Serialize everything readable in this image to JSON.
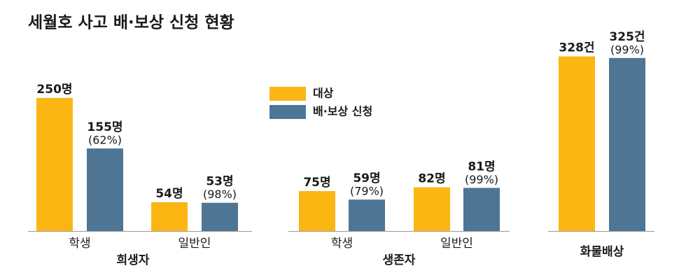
{
  "title": "세월호 사고 배·보상 신청 현황",
  "chart_data": [
    {
      "type": "bar",
      "categories": [
        "학생",
        "일반인"
      ],
      "xlabel": "희생자",
      "ylim": [
        0,
        330
      ],
      "series": [
        {
          "name": "대상",
          "color": "#fbb614",
          "values": [
            250,
            54
          ],
          "value_labels": [
            "250명",
            "54명"
          ]
        },
        {
          "name": "배·보상 신청",
          "color": "#4f7594",
          "values": [
            155,
            53
          ],
          "value_labels": [
            "155명",
            "53명"
          ],
          "notes": [
            "(62%)",
            "(98%)"
          ]
        }
      ]
    },
    {
      "type": "bar",
      "categories": [
        "학생",
        "일반인"
      ],
      "xlabel": "생존자",
      "ylim": [
        0,
        330
      ],
      "series": [
        {
          "color": "#fbb614",
          "values": [
            75,
            82
          ],
          "value_labels": [
            "75명",
            "82명"
          ]
        },
        {
          "color": "#4f7594",
          "values": [
            59,
            81
          ],
          "value_labels": [
            "59명",
            "81명"
          ],
          "notes": [
            "(79%)",
            "(99%)"
          ]
        }
      ]
    },
    {
      "type": "bar",
      "categories": [
        null
      ],
      "xlabel": "화물배상",
      "ylim": [
        0,
        330
      ],
      "series": [
        {
          "color": "#fbb614",
          "values": [
            328
          ],
          "value_labels": [
            "328건"
          ]
        },
        {
          "color": "#4f7594",
          "values": [
            325
          ],
          "value_labels": [
            "325건"
          ],
          "notes": [
            "(99%)"
          ]
        }
      ]
    }
  ]
}
